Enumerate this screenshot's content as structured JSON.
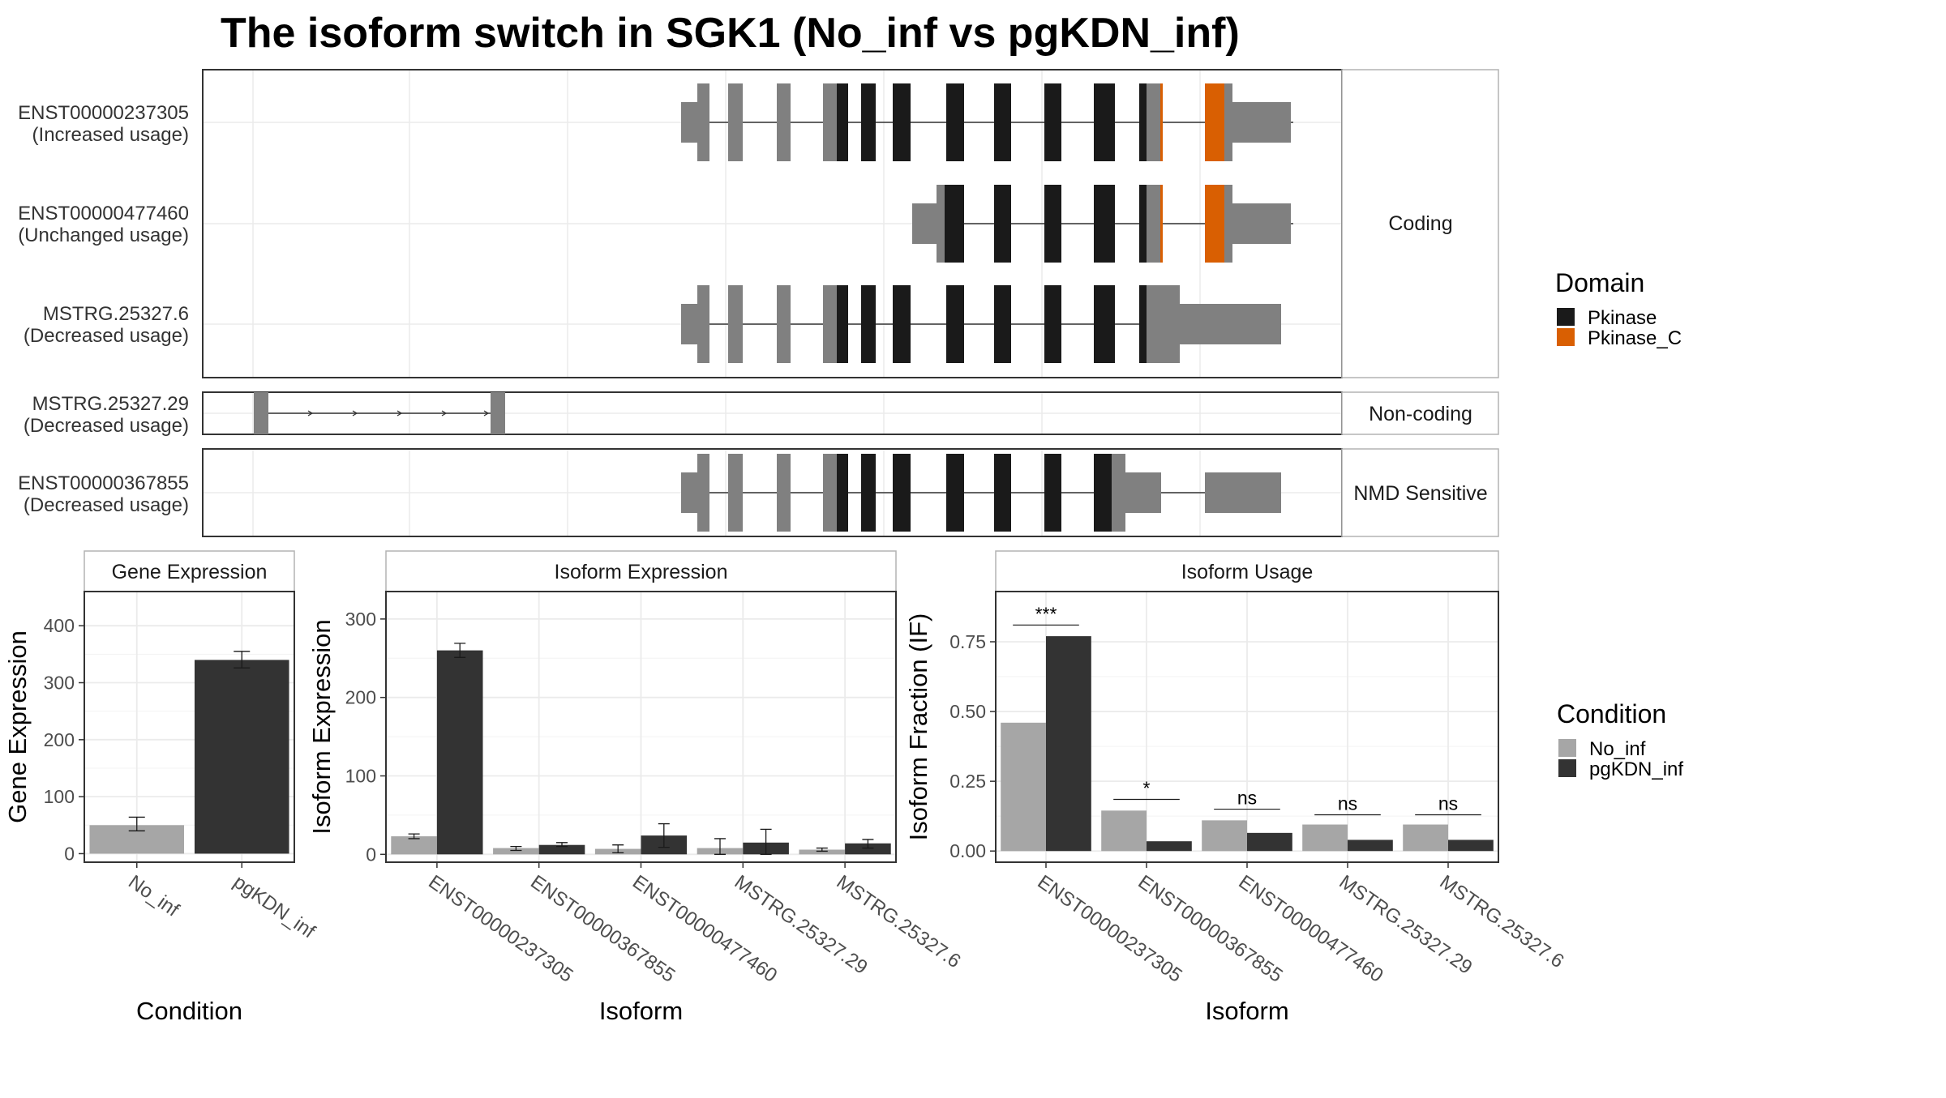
{
  "title": "The isoform switch in SGK1 (No_inf vs pgKDN_inf)",
  "colors": {
    "pkinase": "#1a1a1a",
    "pkinase_c": "#d95f02",
    "noncoding_exon": "#808080",
    "no_inf": "#a6a6a6",
    "pgkdn_inf": "#333333",
    "grid": "#ebebeb",
    "strip_fill": "#ffffff",
    "panel_border": "#333333",
    "strip_border": "#b3b3b3"
  },
  "structure": {
    "groups": [
      {
        "label": "Coding",
        "tracks": [
          {
            "id": "ENST00000237305",
            "usage": "(Increased usage)"
          },
          {
            "id": "ENST00000477460",
            "usage": "(Unchanged usage)"
          },
          {
            "id": "MSTRG.25327.6",
            "usage": "(Decreased usage)"
          }
        ]
      },
      {
        "label": "Non-coding",
        "tracks": [
          {
            "id": "MSTRG.25327.29",
            "usage": "(Decreased usage)"
          }
        ]
      },
      {
        "label": "NMD Sensitive",
        "tracks": [
          {
            "id": "ENST00000367855",
            "usage": "(Decreased usage)"
          }
        ]
      }
    ]
  },
  "legends": {
    "domain": {
      "title": "Domain",
      "items": [
        {
          "label": "Pkinase",
          "color": "#1a1a1a"
        },
        {
          "label": "Pkinase_C",
          "color": "#d95f02"
        }
      ]
    },
    "condition": {
      "title": "Condition",
      "items": [
        {
          "label": "No_inf",
          "color": "#a6a6a6"
        },
        {
          "label": "pgKDN_inf",
          "color": "#333333"
        }
      ]
    }
  },
  "chart_data": [
    {
      "type": "bar",
      "strip": "Gene Expression",
      "xlabel": "Condition",
      "ylabel": "Gene Expression",
      "ylim": [
        -15,
        460
      ],
      "yticks": [
        0,
        100,
        200,
        300,
        400
      ],
      "categories": [
        "No_inf",
        "pgKDN_inf"
      ],
      "values": [
        50,
        340
      ],
      "errors": [
        [
          40,
          64
        ],
        [
          326,
          355
        ]
      ],
      "colors": [
        "#a6a6a6",
        "#333333"
      ]
    },
    {
      "type": "bar",
      "strip": "Isoform Expression",
      "xlabel": "Isoform",
      "ylabel": "Isoform Expression",
      "ylim": [
        -10,
        335
      ],
      "yticks": [
        0,
        100,
        200,
        300
      ],
      "categories": [
        "ENST00000237305",
        "ENST00000367855",
        "ENST00000477460",
        "MSTRG.25327.29",
        "MSTRG.25327.6"
      ],
      "series": [
        {
          "name": "No_inf",
          "values": [
            23,
            8,
            7,
            8,
            6
          ],
          "errors": [
            [
              20,
              26
            ],
            [
              5,
              10
            ],
            [
              2,
              12
            ],
            [
              0,
              20
            ],
            [
              4,
              8
            ]
          ]
        },
        {
          "name": "pgKDN_inf",
          "values": [
            260,
            12,
            24,
            15,
            14
          ],
          "errors": [
            [
              251,
              269
            ],
            [
              10,
              15
            ],
            [
              9,
              39
            ],
            [
              0,
              32
            ],
            [
              8,
              19
            ]
          ]
        }
      ]
    },
    {
      "type": "bar",
      "strip": "Isoform Usage",
      "xlabel": "Isoform",
      "ylabel": "Isoform Fraction (IF)",
      "ylim": [
        -0.04,
        0.93
      ],
      "yticks": [
        0.0,
        0.25,
        0.5,
        0.75
      ],
      "ytick_labels": [
        "0.00",
        "0.25",
        "0.50",
        "0.75"
      ],
      "categories": [
        "ENST00000237305",
        "ENST00000367855",
        "ENST00000477460",
        "MSTRG.25327.29",
        "MSTRG.25327.6"
      ],
      "series": [
        {
          "name": "No_inf",
          "values": [
            0.46,
            0.145,
            0.11,
            0.095,
            0.095
          ]
        },
        {
          "name": "pgKDN_inf",
          "values": [
            0.77,
            0.035,
            0.065,
            0.04,
            0.04
          ]
        }
      ],
      "significance": [
        "***",
        "*",
        "ns",
        "ns",
        "ns"
      ],
      "significance_y": [
        0.81,
        0.185,
        0.15,
        0.13,
        0.13
      ]
    }
  ]
}
